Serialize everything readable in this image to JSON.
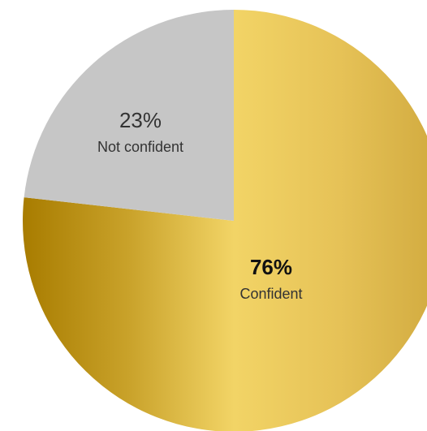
{
  "chart_data": {
    "type": "pie",
    "title": "",
    "slices": [
      {
        "label": "Confident",
        "value_label": "76%",
        "value": 76,
        "emphasis": true
      },
      {
        "label": "Not confident",
        "value_label": "23%",
        "value": 23,
        "emphasis": false
      }
    ],
    "legend": "none",
    "colors": {
      "confident_gradient": [
        "#a87c00",
        "#c9a22a",
        "#f2d466",
        "#e6c257",
        "#d0a93e"
      ],
      "not_confident": "#c6c6c6",
      "label_text": "#333333",
      "label_text_strong": "#111111"
    }
  }
}
